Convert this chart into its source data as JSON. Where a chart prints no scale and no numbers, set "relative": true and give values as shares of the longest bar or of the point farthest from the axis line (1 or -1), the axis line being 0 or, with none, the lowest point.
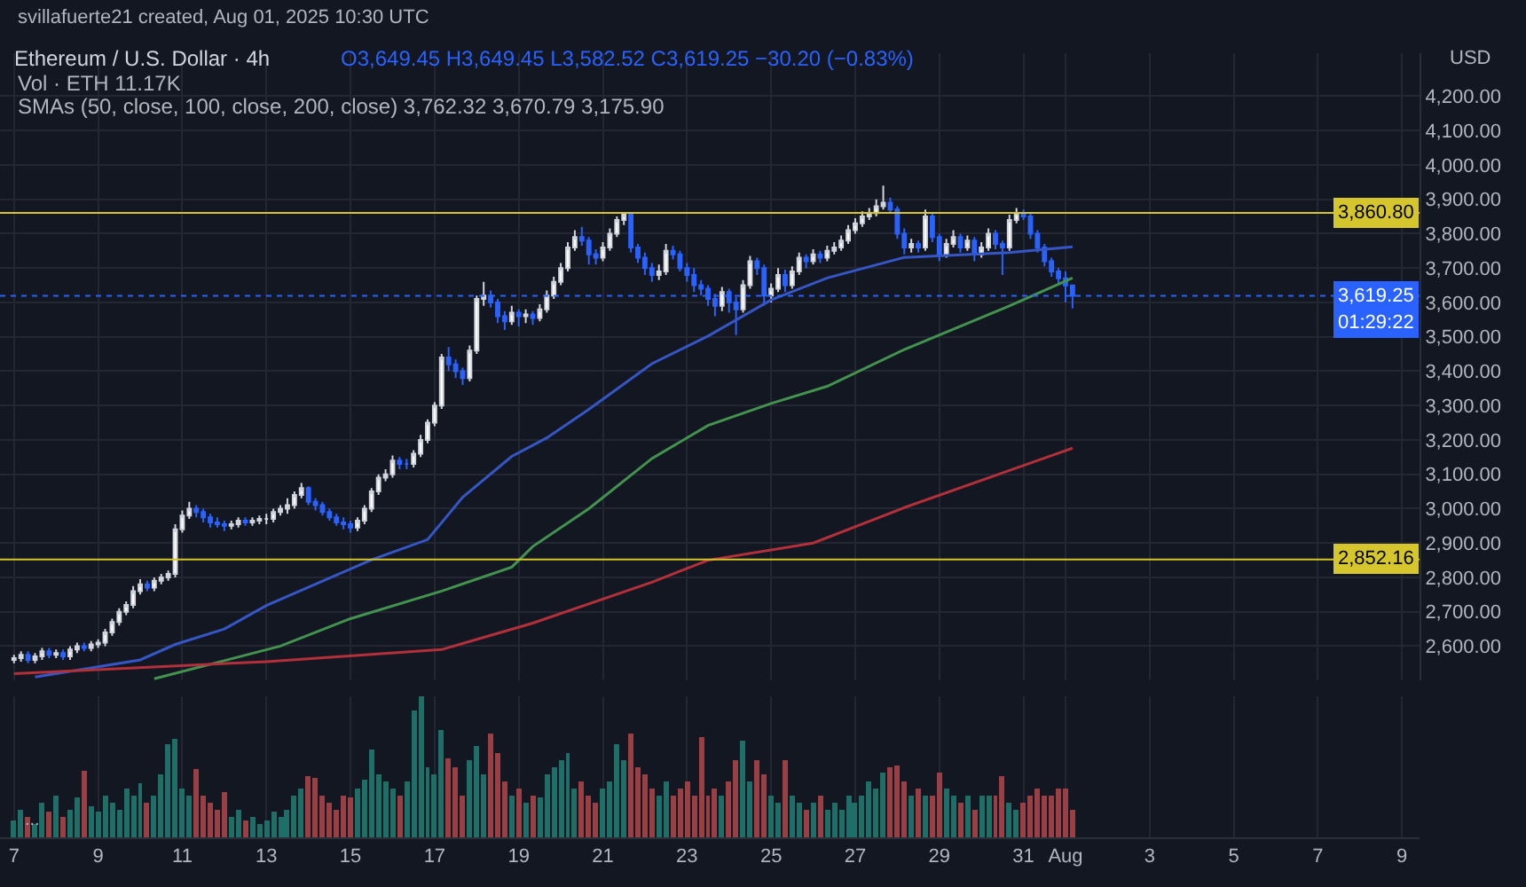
{
  "chart_data": [
    {
      "type": "candlestick",
      "title": "Ethereum / U.S. Dollar · 4h",
      "subtitle": "svillafuerte21 created, Aug 01, 2025 10:30 UTC",
      "annotations": [
        "O3,649.45 H3,649.45 L3,582.52 C3,619.25 −30.20 (−0.83%)",
        "Vol · ETH 11.17K",
        "SMAs (50, close, 100, close, 200, close) 3,762.32 3,670.79 3,175.90",
        "USD",
        "01:29:22",
        "..."
      ],
      "x": [
        "2025-07-07T00:00",
        "2025-07-07T04:00",
        "2025-07-07T08:00",
        "2025-07-07T12:00",
        "2025-07-07T16:00",
        "2025-07-07T20:00",
        "2025-07-08T00:00",
        "2025-07-08T04:00",
        "2025-07-08T08:00",
        "2025-07-08T12:00",
        "2025-07-08T16:00",
        "2025-07-08T20:00",
        "2025-07-09T00:00",
        "2025-07-09T04:00",
        "2025-07-09T08:00",
        "2025-07-09T12:00",
        "2025-07-09T16:00",
        "2025-07-09T20:00",
        "2025-07-10T00:00",
        "2025-07-10T04:00",
        "2025-07-10T08:00",
        "2025-07-10T12:00",
        "2025-07-10T16:00",
        "2025-07-10T20:00",
        "2025-07-11T00:00",
        "2025-07-11T04:00",
        "2025-07-11T08:00",
        "2025-07-11T12:00",
        "2025-07-11T16:00",
        "2025-07-11T20:00",
        "2025-07-12T00:00",
        "2025-07-12T04:00",
        "2025-07-12T08:00",
        "2025-07-12T12:00",
        "2025-07-12T16:00",
        "2025-07-12T20:00",
        "2025-07-13T00:00",
        "2025-07-13T04:00",
        "2025-07-13T08:00",
        "2025-07-13T12:00",
        "2025-07-13T16:00",
        "2025-07-13T20:00",
        "2025-07-14T00:00",
        "2025-07-14T04:00",
        "2025-07-14T08:00",
        "2025-07-14T12:00",
        "2025-07-14T16:00",
        "2025-07-14T20:00",
        "2025-07-15T00:00",
        "2025-07-15T04:00",
        "2025-07-15T08:00",
        "2025-07-15T12:00",
        "2025-07-15T16:00",
        "2025-07-15T20:00",
        "2025-07-16T00:00",
        "2025-07-16T04:00",
        "2025-07-16T08:00",
        "2025-07-16T12:00",
        "2025-07-16T16:00",
        "2025-07-16T20:00",
        "2025-07-17T00:00",
        "2025-07-17T04:00",
        "2025-07-17T08:00",
        "2025-07-17T12:00",
        "2025-07-17T16:00",
        "2025-07-17T20:00",
        "2025-07-18T00:00",
        "2025-07-18T04:00",
        "2025-07-18T08:00",
        "2025-07-18T12:00",
        "2025-07-18T16:00",
        "2025-07-18T20:00",
        "2025-07-19T00:00",
        "2025-07-19T04:00",
        "2025-07-19T08:00",
        "2025-07-19T12:00",
        "2025-07-19T16:00",
        "2025-07-19T20:00",
        "2025-07-20T00:00",
        "2025-07-20T04:00",
        "2025-07-20T08:00",
        "2025-07-20T12:00",
        "2025-07-20T16:00",
        "2025-07-20T20:00",
        "2025-07-21T00:00",
        "2025-07-21T04:00",
        "2025-07-21T08:00",
        "2025-07-21T12:00",
        "2025-07-21T16:00",
        "2025-07-21T20:00",
        "2025-07-22T00:00",
        "2025-07-22T04:00",
        "2025-07-22T08:00",
        "2025-07-22T12:00",
        "2025-07-22T16:00",
        "2025-07-22T20:00",
        "2025-07-23T00:00",
        "2025-07-23T04:00",
        "2025-07-23T08:00",
        "2025-07-23T12:00",
        "2025-07-23T16:00",
        "2025-07-23T20:00",
        "2025-07-24T00:00",
        "2025-07-24T04:00",
        "2025-07-24T08:00",
        "2025-07-24T12:00",
        "2025-07-24T16:00",
        "2025-07-24T20:00",
        "2025-07-25T00:00",
        "2025-07-25T04:00",
        "2025-07-25T08:00",
        "2025-07-25T12:00",
        "2025-07-25T16:00",
        "2025-07-25T20:00",
        "2025-07-26T00:00",
        "2025-07-26T04:00",
        "2025-07-26T08:00",
        "2025-07-26T12:00",
        "2025-07-26T16:00",
        "2025-07-26T20:00",
        "2025-07-27T00:00",
        "2025-07-27T04:00",
        "2025-07-27T08:00",
        "2025-07-27T12:00",
        "2025-07-27T16:00",
        "2025-07-27T20:00",
        "2025-07-28T00:00",
        "2025-07-28T04:00",
        "2025-07-28T08:00",
        "2025-07-28T12:00",
        "2025-07-28T16:00",
        "2025-07-28T20:00",
        "2025-07-29T00:00",
        "2025-07-29T04:00",
        "2025-07-29T08:00",
        "2025-07-29T12:00",
        "2025-07-29T16:00",
        "2025-07-29T20:00",
        "2025-07-30T00:00",
        "2025-07-30T04:00",
        "2025-07-30T08:00",
        "2025-07-30T12:00",
        "2025-07-30T16:00",
        "2025-07-30T20:00",
        "2025-07-31T00:00",
        "2025-07-31T04:00",
        "2025-07-31T08:00",
        "2025-07-31T12:00",
        "2025-07-31T16:00",
        "2025-07-31T20:00",
        "2025-08-01T00:00",
        "2025-08-01T04:00"
      ],
      "ohlc": [
        [
          2560,
          2575,
          2550,
          2565
        ],
        [
          2565,
          2585,
          2555,
          2575
        ],
        [
          2575,
          2585,
          2550,
          2560
        ],
        [
          2560,
          2580,
          2550,
          2570
        ],
        [
          2570,
          2595,
          2560,
          2585
        ],
        [
          2585,
          2595,
          2565,
          2575
        ],
        [
          2575,
          2590,
          2565,
          2580
        ],
        [
          2580,
          2590,
          2560,
          2570
        ],
        [
          2570,
          2600,
          2560,
          2590
        ],
        [
          2590,
          2610,
          2580,
          2600
        ],
        [
          2600,
          2610,
          2585,
          2595
        ],
        [
          2595,
          2615,
          2585,
          2605
        ],
        [
          2605,
          2620,
          2595,
          2610
        ],
        [
          2610,
          2650,
          2600,
          2640
        ],
        [
          2640,
          2680,
          2630,
          2670
        ],
        [
          2670,
          2710,
          2660,
          2700
        ],
        [
          2700,
          2730,
          2690,
          2720
        ],
        [
          2720,
          2775,
          2710,
          2760
        ],
        [
          2760,
          2795,
          2750,
          2780
        ],
        [
          2780,
          2790,
          2760,
          2770
        ],
        [
          2770,
          2800,
          2760,
          2790
        ],
        [
          2790,
          2810,
          2780,
          2800
        ],
        [
          2800,
          2820,
          2790,
          2810
        ],
        [
          2810,
          2955,
          2800,
          2940
        ],
        [
          2940,
          2995,
          2930,
          2980
        ],
        [
          2980,
          3020,
          2970,
          3000
        ],
        [
          3000,
          3010,
          2975,
          2990
        ],
        [
          2990,
          3000,
          2960,
          2975
        ],
        [
          2975,
          2985,
          2945,
          2960
        ],
        [
          2960,
          2975,
          2945,
          2955
        ],
        [
          2955,
          2965,
          2935,
          2950
        ],
        [
          2950,
          2965,
          2940,
          2955
        ],
        [
          2955,
          2975,
          2945,
          2965
        ],
        [
          2965,
          2975,
          2950,
          2960
        ],
        [
          2960,
          2975,
          2950,
          2965
        ],
        [
          2965,
          2980,
          2955,
          2970
        ],
        [
          2970,
          2985,
          2955,
          2970
        ],
        [
          2970,
          3000,
          2960,
          2990
        ],
        [
          2990,
          3010,
          2980,
          3000
        ],
        [
          3000,
          3030,
          2985,
          3010
        ],
        [
          3010,
          3050,
          3000,
          3040
        ],
        [
          3040,
          3075,
          3030,
          3060
        ],
        [
          3060,
          3065,
          3010,
          3020
        ],
        [
          3020,
          3030,
          2995,
          3010
        ],
        [
          3010,
          3020,
          2980,
          2990
        ],
        [
          2990,
          3000,
          2965,
          2975
        ],
        [
          2975,
          2985,
          2950,
          2960
        ],
        [
          2960,
          2975,
          2940,
          2955
        ],
        [
          2955,
          2965,
          2930,
          2945
        ],
        [
          2945,
          2975,
          2935,
          2965
        ],
        [
          2965,
          3010,
          2955,
          3000
        ],
        [
          3000,
          3060,
          2990,
          3050
        ],
        [
          3050,
          3100,
          3040,
          3090
        ],
        [
          3090,
          3115,
          3080,
          3100
        ],
        [
          3100,
          3155,
          3090,
          3140
        ],
        [
          3140,
          3150,
          3115,
          3130
        ],
        [
          3130,
          3145,
          3115,
          3130
        ],
        [
          3130,
          3170,
          3120,
          3160
        ],
        [
          3160,
          3215,
          3150,
          3200
        ],
        [
          3200,
          3260,
          3190,
          3250
        ],
        [
          3250,
          3310,
          3240,
          3300
        ],
        [
          3300,
          3450,
          3290,
          3440
        ],
        [
          3440,
          3470,
          3400,
          3420
        ],
        [
          3420,
          3435,
          3380,
          3400
        ],
        [
          3400,
          3410,
          3360,
          3380
        ],
        [
          3380,
          3475,
          3370,
          3460
        ],
        [
          3460,
          3620,
          3450,
          3610
        ],
        [
          3610,
          3660,
          3590,
          3620
        ],
        [
          3620,
          3635,
          3585,
          3600
        ],
        [
          3600,
          3610,
          3540,
          3560
        ],
        [
          3560,
          3575,
          3520,
          3545
        ],
        [
          3545,
          3590,
          3535,
          3570
        ],
        [
          3570,
          3580,
          3530,
          3560
        ],
        [
          3560,
          3580,
          3540,
          3565
        ],
        [
          3565,
          3575,
          3535,
          3555
        ],
        [
          3555,
          3595,
          3545,
          3580
        ],
        [
          3580,
          3635,
          3570,
          3620
        ],
        [
          3620,
          3675,
          3610,
          3660
        ],
        [
          3660,
          3715,
          3650,
          3700
        ],
        [
          3700,
          3775,
          3690,
          3760
        ],
        [
          3760,
          3810,
          3750,
          3790
        ],
        [
          3790,
          3820,
          3765,
          3780
        ],
        [
          3780,
          3790,
          3710,
          3740
        ],
        [
          3740,
          3755,
          3710,
          3730
        ],
        [
          3730,
          3775,
          3720,
          3760
        ],
        [
          3760,
          3815,
          3750,
          3800
        ],
        [
          3800,
          3850,
          3790,
          3840
        ],
        [
          3840,
          3860.8,
          3825,
          3855
        ],
        [
          3855,
          3860,
          3745,
          3760
        ],
        [
          3760,
          3770,
          3715,
          3730
        ],
        [
          3730,
          3745,
          3680,
          3700
        ],
        [
          3700,
          3715,
          3660,
          3680
        ],
        [
          3680,
          3710,
          3665,
          3690
        ],
        [
          3690,
          3770,
          3680,
          3750
        ],
        [
          3750,
          3765,
          3725,
          3740
        ],
        [
          3740,
          3750,
          3690,
          3700
        ],
        [
          3700,
          3715,
          3660,
          3680
        ],
        [
          3680,
          3700,
          3630,
          3650
        ],
        [
          3650,
          3665,
          3620,
          3640
        ],
        [
          3640,
          3650,
          3590,
          3610
        ],
        [
          3610,
          3625,
          3560,
          3590
        ],
        [
          3590,
          3645,
          3575,
          3630
        ],
        [
          3630,
          3640,
          3570,
          3600
        ],
        [
          3600,
          3615,
          3505,
          3580
        ],
        [
          3580,
          3665,
          3570,
          3650
        ],
        [
          3650,
          3735,
          3640,
          3720
        ],
        [
          3720,
          3730,
          3680,
          3700
        ],
        [
          3700,
          3710,
          3590,
          3620
        ],
        [
          3620,
          3655,
          3600,
          3640
        ],
        [
          3640,
          3700,
          3630,
          3680
        ],
        [
          3680,
          3695,
          3630,
          3650
        ],
        [
          3650,
          3705,
          3640,
          3690
        ],
        [
          3690,
          3745,
          3680,
          3730
        ],
        [
          3730,
          3740,
          3700,
          3720
        ],
        [
          3720,
          3755,
          3710,
          3740
        ],
        [
          3740,
          3750,
          3715,
          3730
        ],
        [
          3730,
          3765,
          3720,
          3750
        ],
        [
          3750,
          3775,
          3740,
          3760
        ],
        [
          3760,
          3795,
          3750,
          3780
        ],
        [
          3780,
          3825,
          3770,
          3810
        ],
        [
          3810,
          3845,
          3800,
          3830
        ],
        [
          3830,
          3865,
          3820,
          3850
        ],
        [
          3850,
          3875,
          3840,
          3860
        ],
        [
          3860,
          3900,
          3850,
          3880
        ],
        [
          3880,
          3940,
          3870,
          3890
        ],
        [
          3890,
          3905,
          3860,
          3870
        ],
        [
          3870,
          3880,
          3785,
          3800
        ],
        [
          3800,
          3815,
          3740,
          3760
        ],
        [
          3760,
          3785,
          3745,
          3770
        ],
        [
          3770,
          3780,
          3745,
          3760
        ],
        [
          3760,
          3870,
          3750,
          3850
        ],
        [
          3850,
          3860,
          3775,
          3790
        ],
        [
          3790,
          3800,
          3720,
          3740
        ],
        [
          3740,
          3785,
          3730,
          3770
        ],
        [
          3770,
          3810,
          3760,
          3790
        ],
        [
          3790,
          3800,
          3745,
          3760
        ],
        [
          3760,
          3795,
          3750,
          3780
        ],
        [
          3780,
          3790,
          3720,
          3740
        ],
        [
          3740,
          3775,
          3730,
          3760
        ],
        [
          3760,
          3815,
          3750,
          3800
        ],
        [
          3800,
          3810,
          3755,
          3770
        ],
        [
          3770,
          3780,
          3680,
          3760
        ],
        [
          3760,
          3855,
          3750,
          3840
        ],
        [
          3840,
          3875,
          3830,
          3860
        ],
        [
          3860,
          3870,
          3840,
          3850
        ],
        [
          3850,
          3860,
          3785,
          3800
        ],
        [
          3800,
          3810,
          3745,
          3760
        ],
        [
          3760,
          3770,
          3705,
          3720
        ],
        [
          3720,
          3730,
          3675,
          3690
        ],
        [
          3690,
          3700,
          3655,
          3670
        ],
        [
          3670,
          3690,
          3600,
          3649.45
        ],
        [
          3649.45,
          3649.45,
          3582.52,
          3619.25
        ]
      ],
      "series": [
        {
          "type": "line",
          "color": "#3556c4",
          "x": [
            "2025-07-07T12:00",
            "2025-07-10T00:00",
            "2025-07-10T20:00",
            "2025-07-12T00:00",
            "2025-07-13T00:00",
            "2025-07-15T12:00",
            "2025-07-16T20:00",
            "2025-07-17T16:00",
            "2025-07-18T20:00",
            "2025-07-19T16:00",
            "2025-07-20T16:00",
            "2025-07-22T04:00",
            "2025-07-23T12:00",
            "2025-07-25T00:00",
            "2025-07-26T08:00",
            "2025-07-28T04:00",
            "2025-07-30T16:00",
            "2025-08-01T04:00"
          ],
          "values": [
            2510,
            2560,
            2605,
            2650,
            2718,
            2851,
            2910,
            3033,
            3152,
            3206,
            3289,
            3422,
            3502,
            3607,
            3671,
            3731,
            3745,
            3762
          ]
        },
        {
          "type": "line",
          "color": "#43934e",
          "x": [
            "2025-07-10T08:00",
            "2025-07-13T08:00",
            "2025-07-15T00:00",
            "2025-07-17T04:00",
            "2025-07-18T20:00",
            "2025-07-19T08:00",
            "2025-07-20T16:00",
            "2025-07-22T04:00",
            "2025-07-23T12:00",
            "2025-07-25T00:00",
            "2025-07-26T08:00",
            "2025-07-28T04:00",
            "2025-07-30T16:00",
            "2025-08-01T04:00"
          ],
          "values": [
            2505,
            2600,
            2680,
            2760,
            2830,
            2890,
            3000,
            3146,
            3242,
            3306,
            3356,
            3463,
            3590,
            3671
          ]
        },
        {
          "type": "line",
          "color": "#b2303a",
          "x": [
            "2025-07-07T00:00",
            "2025-07-13T00:00",
            "2025-07-17T04:00",
            "2025-07-19T08:00",
            "2025-07-22T04:00",
            "2025-07-23T12:00",
            "2025-07-26T00:00",
            "2025-07-28T04:00",
            "2025-07-30T16:00",
            "2025-08-01T04:00"
          ],
          "values": [
            2520,
            2555,
            2590,
            2667,
            2786,
            2850,
            2900,
            3003,
            3111,
            3176
          ]
        }
      ],
      "ref_lines": [
        {
          "axis": "y",
          "value": 3860.8,
          "label": "3,860.80",
          "color": "#d4c62c",
          "line_style": "solid"
        },
        {
          "axis": "y",
          "value": 2852.16,
          "label": "2,852.16",
          "color": "#d4c62c",
          "line_style": "solid"
        },
        {
          "axis": "y",
          "value": 3619.25,
          "label": "3,619.25",
          "color": "#2962ff",
          "line_style": "dotted"
        }
      ],
      "xlim": [
        "2025-07-06T16:00",
        "2025-08-09T10:00"
      ],
      "ylim": [
        2500,
        4325
      ],
      "yticks": [
        {
          "value": 2600,
          "label": "2,600.00"
        },
        {
          "value": 2700,
          "label": "2,700.00"
        },
        {
          "value": 2800,
          "label": "2,800.00"
        },
        {
          "value": 2900,
          "label": "2,900.00"
        },
        {
          "value": 3000,
          "label": "3,000.00"
        },
        {
          "value": 3100,
          "label": "3,100.00"
        },
        {
          "value": 3200,
          "label": "3,200.00"
        },
        {
          "value": 3300,
          "label": "3,300.00"
        },
        {
          "value": 3400,
          "label": "3,400.00"
        },
        {
          "value": 3500,
          "label": "3,500.00"
        },
        {
          "value": 3600,
          "label": "3,600.00"
        },
        {
          "value": 3700,
          "label": "3,700.00"
        },
        {
          "value": 3800,
          "label": "3,800.00"
        },
        {
          "value": 3900,
          "label": "3,900.00"
        },
        {
          "value": 4000,
          "label": "4,000.00"
        },
        {
          "value": 4100,
          "label": "4,100.00"
        },
        {
          "value": 4200,
          "label": "4,200.00"
        }
      ],
      "grid": true,
      "tick_labels": "y"
    },
    {
      "type": "bar",
      "relative": true,
      "grid": "x",
      "tick_labels": "x",
      "xlim": [
        "2025-07-06T16:00",
        "2025-08-09T10:00"
      ],
      "xticks": [
        {
          "value": "2025-07-07",
          "label": "7"
        },
        {
          "value": "2025-07-09",
          "label": "9"
        },
        {
          "value": "2025-07-11",
          "label": "11"
        },
        {
          "value": "2025-07-13",
          "label": "13"
        },
        {
          "value": "2025-07-15",
          "label": "15"
        },
        {
          "value": "2025-07-17",
          "label": "17"
        },
        {
          "value": "2025-07-19",
          "label": "19"
        },
        {
          "value": "2025-07-21",
          "label": "21"
        },
        {
          "value": "2025-07-23",
          "label": "23"
        },
        {
          "value": "2025-07-25",
          "label": "25"
        },
        {
          "value": "2025-07-27",
          "label": "27"
        },
        {
          "value": "2025-07-29",
          "label": "29"
        },
        {
          "value": "2025-07-31",
          "label": "31"
        },
        {
          "value": "2025-08-01",
          "label": "Aug"
        },
        {
          "value": "2025-08-03",
          "label": "3"
        },
        {
          "value": "2025-08-05",
          "label": "5"
        },
        {
          "value": "2025-08-07",
          "label": "7"
        },
        {
          "value": "2025-08-09",
          "label": "9"
        }
      ],
      "x": [
        "2025-07-07T00:00",
        "2025-07-07T04:00",
        "2025-07-07T08:00",
        "2025-07-07T12:00",
        "2025-07-07T16:00",
        "2025-07-07T20:00",
        "2025-07-08T00:00",
        "2025-07-08T04:00",
        "2025-07-08T08:00",
        "2025-07-08T12:00",
        "2025-07-08T16:00",
        "2025-07-08T20:00",
        "2025-07-09T00:00",
        "2025-07-09T04:00",
        "2025-07-09T08:00",
        "2025-07-09T12:00",
        "2025-07-09T16:00",
        "2025-07-09T20:00",
        "2025-07-10T00:00",
        "2025-07-10T04:00",
        "2025-07-10T08:00",
        "2025-07-10T12:00",
        "2025-07-10T16:00",
        "2025-07-10T20:00",
        "2025-07-11T00:00",
        "2025-07-11T04:00",
        "2025-07-11T08:00",
        "2025-07-11T12:00",
        "2025-07-11T16:00",
        "2025-07-11T20:00",
        "2025-07-12T00:00",
        "2025-07-12T04:00",
        "2025-07-12T08:00",
        "2025-07-12T12:00",
        "2025-07-12T16:00",
        "2025-07-12T20:00",
        "2025-07-13T00:00",
        "2025-07-13T04:00",
        "2025-07-13T08:00",
        "2025-07-13T12:00",
        "2025-07-13T16:00",
        "2025-07-13T20:00",
        "2025-07-14T00:00",
        "2025-07-14T04:00",
        "2025-07-14T08:00",
        "2025-07-14T12:00",
        "2025-07-14T16:00",
        "2025-07-14T20:00",
        "2025-07-15T00:00",
        "2025-07-15T04:00",
        "2025-07-15T08:00",
        "2025-07-15T12:00",
        "2025-07-15T16:00",
        "2025-07-15T20:00",
        "2025-07-16T00:00",
        "2025-07-16T04:00",
        "2025-07-16T08:00",
        "2025-07-16T12:00",
        "2025-07-16T16:00",
        "2025-07-16T20:00",
        "2025-07-17T00:00",
        "2025-07-17T04:00",
        "2025-07-17T08:00",
        "2025-07-17T12:00",
        "2025-07-17T16:00",
        "2025-07-17T20:00",
        "2025-07-18T00:00",
        "2025-07-18T04:00",
        "2025-07-18T08:00",
        "2025-07-18T12:00",
        "2025-07-18T16:00",
        "2025-07-18T20:00",
        "2025-07-19T00:00",
        "2025-07-19T04:00",
        "2025-07-19T08:00",
        "2025-07-19T12:00",
        "2025-07-19T16:00",
        "2025-07-19T20:00",
        "2025-07-20T00:00",
        "2025-07-20T04:00",
        "2025-07-20T08:00",
        "2025-07-20T12:00",
        "2025-07-20T16:00",
        "2025-07-20T20:00",
        "2025-07-21T00:00",
        "2025-07-21T04:00",
        "2025-07-21T08:00",
        "2025-07-21T12:00",
        "2025-07-21T16:00",
        "2025-07-21T20:00",
        "2025-07-22T00:00",
        "2025-07-22T04:00",
        "2025-07-22T08:00",
        "2025-07-22T12:00",
        "2025-07-22T16:00",
        "2025-07-22T20:00",
        "2025-07-23T00:00",
        "2025-07-23T04:00",
        "2025-07-23T08:00",
        "2025-07-23T12:00",
        "2025-07-23T16:00",
        "2025-07-23T20:00",
        "2025-07-24T00:00",
        "2025-07-24T04:00",
        "2025-07-24T08:00",
        "2025-07-24T12:00",
        "2025-07-24T16:00",
        "2025-07-24T20:00",
        "2025-07-25T00:00",
        "2025-07-25T04:00",
        "2025-07-25T08:00",
        "2025-07-25T12:00",
        "2025-07-25T16:00",
        "2025-07-25T20:00",
        "2025-07-26T00:00",
        "2025-07-26T04:00",
        "2025-07-26T08:00",
        "2025-07-26T12:00",
        "2025-07-26T16:00",
        "2025-07-26T20:00",
        "2025-07-27T00:00",
        "2025-07-27T04:00",
        "2025-07-27T08:00",
        "2025-07-27T12:00",
        "2025-07-27T16:00",
        "2025-07-27T20:00",
        "2025-07-28T00:00",
        "2025-07-28T04:00",
        "2025-07-28T08:00",
        "2025-07-28T12:00",
        "2025-07-28T16:00",
        "2025-07-28T20:00",
        "2025-07-29T00:00",
        "2025-07-29T04:00",
        "2025-07-29T08:00",
        "2025-07-29T12:00",
        "2025-07-29T16:00",
        "2025-07-29T20:00",
        "2025-07-30T00:00",
        "2025-07-30T04:00",
        "2025-07-30T08:00",
        "2025-07-30T12:00",
        "2025-07-30T16:00",
        "2025-07-30T20:00",
        "2025-07-31T00:00",
        "2025-07-31T04:00",
        "2025-07-31T08:00",
        "2025-07-31T12:00",
        "2025-07-31T16:00",
        "2025-07-31T20:00",
        "2025-08-01T00:00",
        "2025-08-01T04:00"
      ],
      "values": [
        0.12,
        0.2,
        0.15,
        0.1,
        0.25,
        0.18,
        0.3,
        0.14,
        0.2,
        0.28,
        0.47,
        0.22,
        0.18,
        0.3,
        0.25,
        0.2,
        0.35,
        0.3,
        0.38,
        0.25,
        0.3,
        0.45,
        0.66,
        0.7,
        0.35,
        0.3,
        0.49,
        0.3,
        0.25,
        0.2,
        0.32,
        0.15,
        0.2,
        0.12,
        0.15,
        0.1,
        0.12,
        0.18,
        0.15,
        0.2,
        0.3,
        0.35,
        0.44,
        0.42,
        0.3,
        0.25,
        0.2,
        0.3,
        0.28,
        0.35,
        0.41,
        0.62,
        0.45,
        0.4,
        0.35,
        0.3,
        0.4,
        0.9,
        1,
        0.5,
        0.45,
        0.76,
        0.56,
        0.5,
        0.3,
        0.55,
        0.65,
        0.45,
        0.74,
        0.6,
        0.4,
        0.3,
        0.35,
        0.25,
        0.3,
        0.28,
        0.45,
        0.5,
        0.55,
        0.6,
        0.35,
        0.4,
        0.3,
        0.25,
        0.35,
        0.4,
        0.66,
        0.55,
        0.73,
        0.5,
        0.45,
        0.35,
        0.3,
        0.4,
        0.3,
        0.35,
        0.4,
        0.3,
        0.71,
        0.3,
        0.35,
        0.3,
        0.4,
        0.55,
        0.69,
        0.4,
        0.55,
        0.45,
        0.3,
        0.25,
        0.55,
        0.3,
        0.25,
        0.2,
        0.25,
        0.3,
        0.2,
        0.25,
        0.2,
        0.3,
        0.25,
        0.3,
        0.4,
        0.35,
        0.46,
        0.5,
        0.51,
        0.4,
        0.3,
        0.35,
        0.3,
        0.3,
        0.46,
        0.35,
        0.3,
        0.25,
        0.3,
        0.2,
        0.3,
        0.3,
        0.3,
        0.43,
        0.25,
        0.2,
        0.25,
        0.3,
        0.35,
        0.3,
        0.3,
        0.35,
        0.35,
        0.2
      ],
      "colors": [
        "#1f6f68",
        "#1f6f68",
        "#9a3f44",
        "#1f6f68",
        "#1f6f68",
        "#9a3f44",
        "#1f6f68",
        "#9a3f44",
        "#1f6f68",
        "#1f6f68",
        "#9a3f44",
        "#1f6f68",
        "#1f6f68",
        "#1f6f68",
        "#1f6f68",
        "#1f6f68",
        "#1f6f68",
        "#1f6f68",
        "#1f6f68",
        "#9a3f44",
        "#1f6f68",
        "#1f6f68",
        "#1f6f68",
        "#1f6f68",
        "#1f6f68",
        "#1f6f68",
        "#9a3f44",
        "#9a3f44",
        "#9a3f44",
        "#9a3f44",
        "#9a3f44",
        "#1f6f68",
        "#1f6f68",
        "#9a3f44",
        "#1f6f68",
        "#1f6f68",
        "#1f6f68",
        "#1f6f68",
        "#1f6f68",
        "#1f6f68",
        "#1f6f68",
        "#1f6f68",
        "#9a3f44",
        "#9a3f44",
        "#9a3f44",
        "#9a3f44",
        "#9a3f44",
        "#9a3f44",
        "#9a3f44",
        "#1f6f68",
        "#1f6f68",
        "#1f6f68",
        "#1f6f68",
        "#1f6f68",
        "#1f6f68",
        "#9a3f44",
        "#1f6f68",
        "#1f6f68",
        "#1f6f68",
        "#1f6f68",
        "#1f6f68",
        "#1f6f68",
        "#9a3f44",
        "#9a3f44",
        "#9a3f44",
        "#1f6f68",
        "#1f6f68",
        "#1f6f68",
        "#9a3f44",
        "#9a3f44",
        "#9a3f44",
        "#1f6f68",
        "#9a3f44",
        "#1f6f68",
        "#9a3f44",
        "#1f6f68",
        "#1f6f68",
        "#1f6f68",
        "#1f6f68",
        "#1f6f68",
        "#1f6f68",
        "#9a3f44",
        "#9a3f44",
        "#9a3f44",
        "#1f6f68",
        "#1f6f68",
        "#1f6f68",
        "#1f6f68",
        "#9a3f44",
        "#9a3f44",
        "#9a3f44",
        "#9a3f44",
        "#1f6f68",
        "#1f6f68",
        "#9a3f44",
        "#9a3f44",
        "#9a3f44",
        "#9a3f44",
        "#9a3f44",
        "#9a3f44",
        "#9a3f44",
        "#1f6f68",
        "#9a3f44",
        "#9a3f44",
        "#1f6f68",
        "#1f6f68",
        "#9a3f44",
        "#9a3f44",
        "#1f6f68",
        "#1f6f68",
        "#9a3f44",
        "#1f6f68",
        "#1f6f68",
        "#9a3f44",
        "#1f6f68",
        "#9a3f44",
        "#1f6f68",
        "#1f6f68",
        "#1f6f68",
        "#1f6f68",
        "#1f6f68",
        "#1f6f68",
        "#1f6f68",
        "#1f6f68",
        "#1f6f68",
        "#9a3f44",
        "#9a3f44",
        "#9a3f44",
        "#1f6f68",
        "#9a3f44",
        "#1f6f68",
        "#9a3f44",
        "#9a3f44",
        "#1f6f68",
        "#1f6f68",
        "#9a3f44",
        "#1f6f68",
        "#9a3f44",
        "#1f6f68",
        "#1f6f68",
        "#9a3f44",
        "#9a3f44",
        "#1f6f68",
        "#1f6f68",
        "#9a3f44",
        "#9a3f44",
        "#9a3f44",
        "#9a3f44",
        "#9a3f44",
        "#9a3f44",
        "#9a3f44",
        "#9a3f44"
      ]
    }
  ]
}
